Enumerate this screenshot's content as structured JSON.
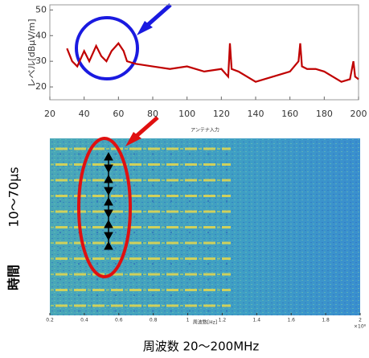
{
  "chart_data": [
    {
      "type": "line",
      "y_label": "レベル[dBμV/m]",
      "x_label": "アンテナ入力",
      "color": "#c00000",
      "x": [
        30,
        33,
        36,
        40,
        43,
        47,
        50,
        53,
        56,
        60,
        63,
        65,
        70,
        80,
        90,
        100,
        110,
        120,
        124,
        125,
        126,
        130,
        140,
        150,
        160,
        165,
        166,
        167,
        170,
        175,
        180,
        185,
        190,
        195,
        197,
        198,
        200
      ],
      "values": [
        35,
        30,
        28,
        34,
        30,
        36,
        32,
        30,
        34,
        37,
        34,
        30,
        29,
        28,
        27,
        28,
        26,
        27,
        24,
        37,
        27,
        26,
        22,
        24,
        26,
        30,
        37,
        28,
        27,
        27,
        26,
        24,
        22,
        23,
        30,
        24,
        23
      ],
      "xlim": [
        20,
        200
      ],
      "xticks": [
        20,
        40,
        60,
        80,
        100,
        120,
        140,
        160,
        180,
        200
      ],
      "ylim": [
        15,
        52
      ],
      "yticks": [
        20,
        30,
        40,
        50
      ]
    },
    {
      "type": "spectrogram",
      "x_label": "周波数[Hz]",
      "x_scale_label": "×10⁸",
      "xlim": [
        0.2,
        2
      ],
      "xticks": [
        0.2,
        0.4,
        0.6,
        0.8,
        1,
        1.2,
        1.4,
        1.6,
        1.8,
        2
      ]
    }
  ],
  "annotations": {
    "time_range": "10〜70μs",
    "time_label": "時間",
    "freq_label": "周波数 20〜200MHz"
  }
}
